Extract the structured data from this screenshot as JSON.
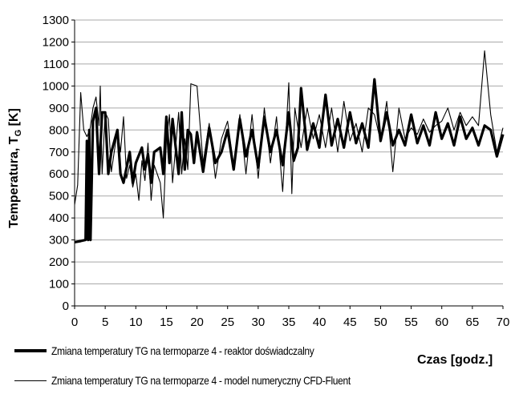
{
  "chart_data": {
    "type": "line",
    "title": "",
    "xlabel": "Czas [godz.]",
    "ylabel_main": "Temperatura, T",
    "ylabel_sub": "G",
    "ylabel_unit": " [K]",
    "xlim": [
      0,
      70
    ],
    "ylim": [
      0,
      1300
    ],
    "xticks": [
      0,
      5,
      10,
      15,
      20,
      25,
      30,
      35,
      40,
      45,
      50,
      55,
      60,
      65,
      70
    ],
    "yticks": [
      0,
      100,
      200,
      300,
      400,
      500,
      600,
      700,
      800,
      900,
      1000,
      1100,
      1200,
      1300
    ],
    "grid": "horizontal",
    "series": [
      {
        "name": "Zmiana temperatury TG na termoparze 4 - reaktor doświadczalny",
        "style": "thick",
        "points": [
          [
            0,
            290
          ],
          [
            1,
            295
          ],
          [
            1.8,
            300
          ],
          [
            2.0,
            750
          ],
          [
            2.2,
            300
          ],
          [
            2.4,
            800
          ],
          [
            2.6,
            300
          ],
          [
            3.0,
            840
          ],
          [
            3.5,
            900
          ],
          [
            4.0,
            600
          ],
          [
            4.5,
            880
          ],
          [
            5.0,
            880
          ],
          [
            5.5,
            600
          ],
          [
            6,
            700
          ],
          [
            7,
            800
          ],
          [
            7.5,
            600
          ],
          [
            8,
            560
          ],
          [
            9,
            700
          ],
          [
            9.5,
            560
          ],
          [
            10,
            650
          ],
          [
            11,
            720
          ],
          [
            11.5,
            620
          ],
          [
            12,
            690
          ],
          [
            12.5,
            560
          ],
          [
            13,
            700
          ],
          [
            14,
            720
          ],
          [
            14.5,
            600
          ],
          [
            15,
            860
          ],
          [
            15.5,
            650
          ],
          [
            16,
            850
          ],
          [
            17,
            600
          ],
          [
            17.5,
            880
          ],
          [
            18,
            620
          ],
          [
            18.5,
            800
          ],
          [
            19,
            780
          ],
          [
            19.5,
            650
          ],
          [
            20,
            790
          ],
          [
            21,
            610
          ],
          [
            22,
            810
          ],
          [
            23,
            650
          ],
          [
            24,
            700
          ],
          [
            25,
            800
          ],
          [
            26,
            620
          ],
          [
            27,
            850
          ],
          [
            28,
            680
          ],
          [
            29,
            800
          ],
          [
            30,
            630
          ],
          [
            31,
            860
          ],
          [
            32,
            700
          ],
          [
            33,
            800
          ],
          [
            34,
            640
          ],
          [
            35,
            880
          ],
          [
            35.8,
            660
          ],
          [
            36.5,
            720
          ],
          [
            37,
            990
          ],
          [
            38,
            710
          ],
          [
            39,
            830
          ],
          [
            40,
            720
          ],
          [
            41,
            960
          ],
          [
            42,
            730
          ],
          [
            43,
            850
          ],
          [
            44,
            720
          ],
          [
            45,
            880
          ],
          [
            46,
            740
          ],
          [
            47,
            830
          ],
          [
            48,
            720
          ],
          [
            49,
            1030
          ],
          [
            50,
            750
          ],
          [
            51,
            880
          ],
          [
            52,
            730
          ],
          [
            53,
            800
          ],
          [
            54,
            730
          ],
          [
            55,
            870
          ],
          [
            56,
            740
          ],
          [
            57,
            820
          ],
          [
            58,
            730
          ],
          [
            59,
            880
          ],
          [
            60,
            760
          ],
          [
            61,
            830
          ],
          [
            62,
            730
          ],
          [
            63,
            860
          ],
          [
            64,
            760
          ],
          [
            65,
            810
          ],
          [
            66,
            730
          ],
          [
            67,
            820
          ],
          [
            68,
            800
          ],
          [
            69,
            680
          ],
          [
            70,
            780
          ]
        ]
      },
      {
        "name": "Zmiana temperatury TG na termoparze 4 - model numeryczny CFD-Fluent",
        "style": "thin",
        "points": [
          [
            0,
            460
          ],
          [
            0.5,
            550
          ],
          [
            1,
            970
          ],
          [
            1.5,
            800
          ],
          [
            2,
            770
          ],
          [
            2.5,
            800
          ],
          [
            3,
            900
          ],
          [
            3.5,
            950
          ],
          [
            4,
            820
          ],
          [
            4.2,
            1000
          ],
          [
            4.5,
            600
          ],
          [
            5,
            880
          ],
          [
            5.5,
            850
          ],
          [
            6,
            610
          ],
          [
            7,
            800
          ],
          [
            7.5,
            700
          ],
          [
            8,
            860
          ],
          [
            8.5,
            580
          ],
          [
            9,
            640
          ],
          [
            9.5,
            540
          ],
          [
            10,
            600
          ],
          [
            10.5,
            480
          ],
          [
            11,
            660
          ],
          [
            11.5,
            570
          ],
          [
            12,
            740
          ],
          [
            12.5,
            480
          ],
          [
            13,
            640
          ],
          [
            14,
            560
          ],
          [
            14.5,
            400
          ],
          [
            15,
            750
          ],
          [
            15.5,
            870
          ],
          [
            16,
            560
          ],
          [
            17,
            880
          ],
          [
            17.5,
            600
          ],
          [
            18,
            760
          ],
          [
            18.5,
            620
          ],
          [
            19,
            1010
          ],
          [
            20,
            1000
          ],
          [
            21,
            650
          ],
          [
            22,
            830
          ],
          [
            23,
            580
          ],
          [
            24,
            760
          ],
          [
            25,
            840
          ],
          [
            26,
            640
          ],
          [
            27,
            870
          ],
          [
            28,
            600
          ],
          [
            29,
            870
          ],
          [
            30,
            580
          ],
          [
            31,
            900
          ],
          [
            32,
            650
          ],
          [
            33,
            860
          ],
          [
            34,
            520
          ],
          [
            35,
            1015
          ],
          [
            35.5,
            510
          ],
          [
            36,
            900
          ],
          [
            37,
            720
          ],
          [
            38,
            900
          ],
          [
            39,
            760
          ],
          [
            40,
            870
          ],
          [
            41,
            720
          ],
          [
            42,
            900
          ],
          [
            43,
            700
          ],
          [
            44,
            930
          ],
          [
            45,
            750
          ],
          [
            46,
            830
          ],
          [
            47,
            700
          ],
          [
            48,
            900
          ],
          [
            49,
            870
          ],
          [
            50,
            750
          ],
          [
            51,
            930
          ],
          [
            52,
            610
          ],
          [
            53,
            900
          ],
          [
            54,
            760
          ],
          [
            55,
            810
          ],
          [
            56,
            780
          ],
          [
            57,
            850
          ],
          [
            58,
            790
          ],
          [
            59,
            820
          ],
          [
            60,
            840
          ],
          [
            61,
            900
          ],
          [
            62,
            800
          ],
          [
            63,
            880
          ],
          [
            64,
            820
          ],
          [
            65,
            860
          ],
          [
            66,
            820
          ],
          [
            67,
            1160
          ],
          [
            68,
            870
          ],
          [
            69,
            700
          ],
          [
            70,
            810
          ]
        ]
      }
    ]
  }
}
